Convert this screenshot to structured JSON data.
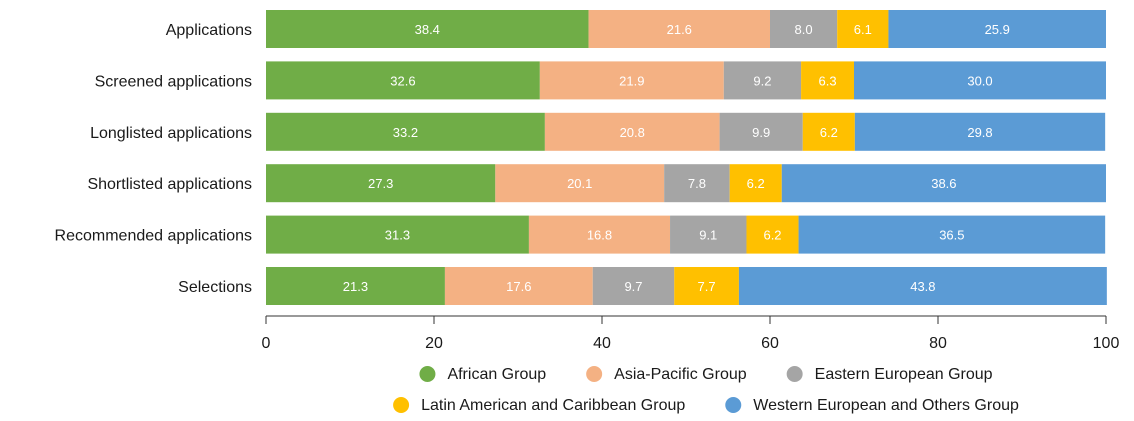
{
  "chart_data": {
    "type": "bar",
    "orientation": "horizontal",
    "stacked": true,
    "categories": [
      "Applications",
      "Screened applications",
      "Longlisted applications",
      "Shortlisted applications",
      "Recommended applications",
      "Selections"
    ],
    "series": [
      {
        "name": "African Group",
        "color": "#70ad47",
        "values": [
          38.4,
          32.6,
          33.2,
          27.3,
          31.3,
          21.3
        ]
      },
      {
        "name": "Asia-Pacific Group",
        "color": "#f4b183",
        "values": [
          21.6,
          21.9,
          20.8,
          20.1,
          16.8,
          17.6
        ]
      },
      {
        "name": "Eastern European Group",
        "color": "#a5a5a5",
        "values": [
          8.0,
          9.2,
          9.9,
          7.8,
          9.1,
          9.7
        ]
      },
      {
        "name": "Latin American and Caribbean Group",
        "color": "#ffc000",
        "values": [
          6.1,
          6.3,
          6.2,
          6.2,
          6.2,
          7.7
        ]
      },
      {
        "name": "Western European and Others Group",
        "color": "#5b9bd5",
        "values": [
          25.9,
          30.0,
          29.8,
          38.6,
          36.5,
          43.8
        ]
      }
    ],
    "xlim": [
      0,
      100
    ],
    "xticks": [
      0,
      20,
      40,
      60,
      80,
      100
    ],
    "grid": false,
    "legend_position": "bottom",
    "data_labels": true
  }
}
